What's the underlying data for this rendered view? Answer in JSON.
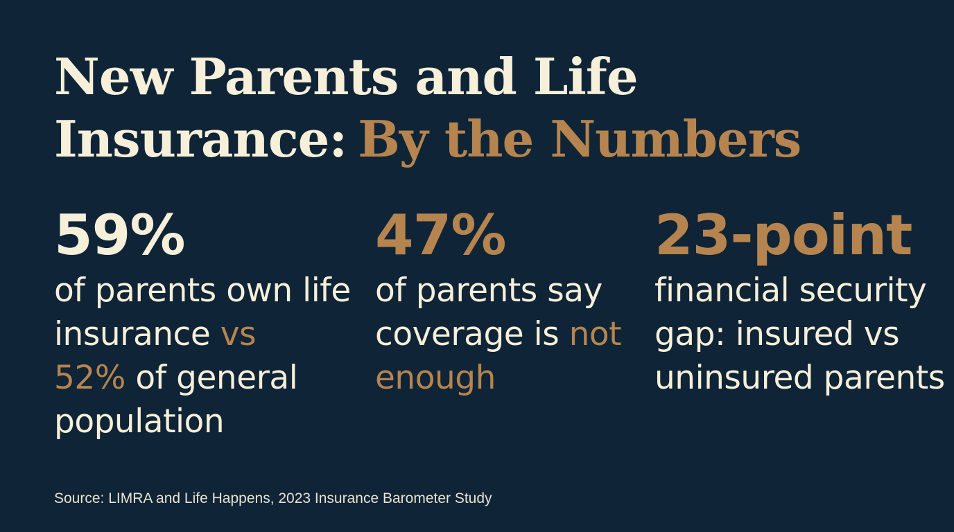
{
  "title": {
    "line1": "New Parents and Life",
    "line2_main": "Insurance:",
    "line2_accent": "By the Numbers"
  },
  "stats": [
    {
      "value": "59%",
      "desc_part1": "of parents own life insurance ",
      "desc_accent1": "vs",
      "desc_accent2": "52%",
      "desc_part2": " of general population"
    },
    {
      "value": "47%",
      "desc_part1": "of parents say coverage is ",
      "desc_accent1": "not enough"
    },
    {
      "value": "23-point",
      "desc_part1": "financial security gap: insured vs uninsured parents"
    }
  ],
  "source": "Source: LIMRA and Life Happens, 2023 Insurance Barometer Study",
  "colors": {
    "background": "#0f2436",
    "cream": "#f6efd9",
    "gold": "#b6844f"
  }
}
